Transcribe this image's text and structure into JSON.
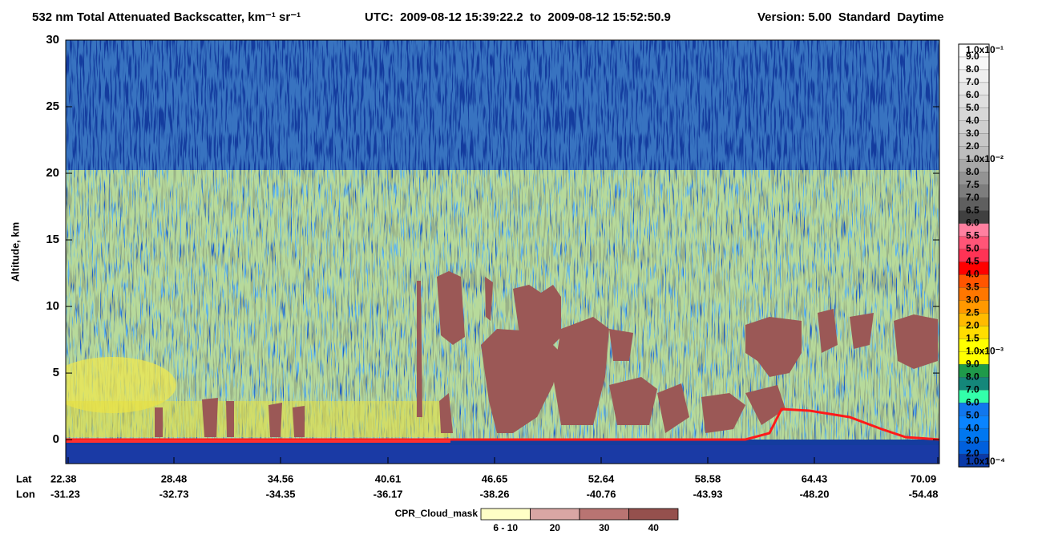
{
  "chart_data": {
    "type": "curtain",
    "title": "532 nm Total Attenuated Backscatter, km⁻¹ sr⁻¹",
    "time_range": "UTC:  2009-08-12 15:39:22.2  to  2009-08-12 15:52:50.9",
    "version": "Version: 5.00  Standard  Daytime",
    "ylabel": "Altitude, km",
    "ylim": [
      -1.8,
      30
    ],
    "yticks": [
      0,
      5,
      10,
      15,
      20,
      25,
      30
    ],
    "x_row_labels": [
      "Lat",
      "Lon"
    ],
    "lat": [
      "22.38",
      "28.48",
      "34.56",
      "40.61",
      "46.65",
      "52.64",
      "58.58",
      "64.43",
      "70.09"
    ],
    "lon": [
      "-31.23",
      "-32.73",
      "-34.35",
      "-36.17",
      "-38.26",
      "-40.76",
      "-43.93",
      "-48.20",
      "-54.48"
    ],
    "colorbar": {
      "labels": [
        "1.0x10⁻¹",
        "9.0",
        "8.0",
        "7.0",
        "6.0",
        "5.0",
        "4.0",
        "3.0",
        "2.0",
        "1.0x10⁻²",
        "8.0",
        "7.5",
        "7.0",
        "6.5",
        "6.0",
        "5.5",
        "5.0",
        "4.5",
        "4.0",
        "3.5",
        "3.0",
        "2.5",
        "2.0",
        "1.5",
        "1.0x10⁻³",
        "9.0",
        "8.0",
        "7.0",
        "6.0",
        "5.0",
        "4.0",
        "3.0",
        "2.0",
        "1.0x10⁻⁴"
      ],
      "colors": [
        "#ffffff",
        "#f7f7f7",
        "#efefef",
        "#e7e7e7",
        "#dfdfdf",
        "#d7d7d7",
        "#cfcfcf",
        "#c7c7c7",
        "#bdbdbd",
        "#a8a8a8",
        "#939393",
        "#7d7d7d",
        "#5f5f5f",
        "#404040",
        "#ff80a0",
        "#ff5577",
        "#ff3355",
        "#ff0000",
        "#ff5500",
        "#ff7700",
        "#ff9900",
        "#ffbb00",
        "#ffdd00",
        "#ffff00",
        "#ffff00",
        "#1f9a4a",
        "#14877a",
        "#33ffaa",
        "#1177ee",
        "#0a84ff",
        "#0077f0",
        "#0060dd",
        "#0a3aa8",
        "#00259a",
        "#0a2a8f"
      ]
    },
    "cloud_mask": {
      "label": "CPR_Cloud_mask",
      "categories": [
        "6 - 10",
        "20",
        "30",
        "40"
      ],
      "colors": [
        "#ffffc6",
        "#d9a6a4",
        "#b97472",
        "#95504d"
      ]
    }
  }
}
